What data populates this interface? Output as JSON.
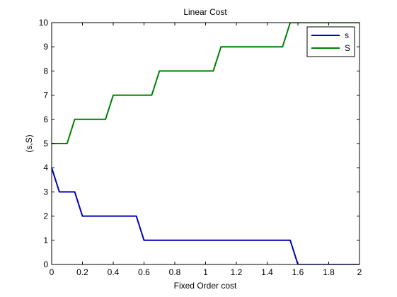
{
  "chart_data": {
    "type": "line",
    "title": "Linear Cost",
    "xlabel": "Fixed Order cost",
    "ylabel": "(s,S)",
    "xlim": [
      0,
      2
    ],
    "ylim": [
      0,
      10
    ],
    "xticks": [
      0,
      0.2,
      0.4,
      0.6,
      0.8,
      1,
      1.2,
      1.4,
      1.6,
      1.8,
      2
    ],
    "xtick_labels": [
      "0",
      "0.2",
      "0.4",
      "0.6",
      "0.8",
      "1",
      "1.2",
      "1.4",
      "1.6",
      "1.8",
      "2"
    ],
    "yticks": [
      0,
      1,
      2,
      3,
      4,
      5,
      6,
      7,
      8,
      9,
      10
    ],
    "ytick_labels": [
      "0",
      "1",
      "2",
      "3",
      "4",
      "5",
      "6",
      "7",
      "8",
      "9",
      "10"
    ],
    "grid": false,
    "legend_position": "top-right",
    "series": [
      {
        "name": "s",
        "color": "#0000bf",
        "x": [
          0,
          0.05,
          0.15,
          0.2,
          0.55,
          0.6,
          1.55,
          1.6,
          2
        ],
        "y": [
          4,
          3,
          3,
          2,
          2,
          1,
          1,
          0,
          0
        ]
      },
      {
        "name": "S",
        "color": "#008000",
        "x": [
          0,
          0.1,
          0.15,
          0.35,
          0.4,
          0.65,
          0.7,
          1.05,
          1.1,
          1.5,
          1.55,
          2
        ],
        "y": [
          5,
          5,
          6,
          6,
          7,
          7,
          8,
          8,
          9,
          9,
          10,
          10
        ]
      }
    ]
  }
}
